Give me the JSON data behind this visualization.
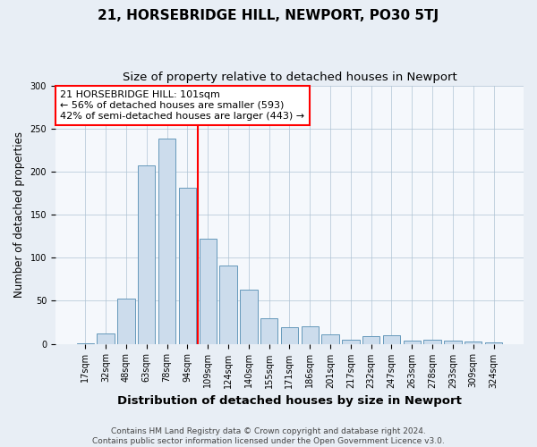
{
  "title": "21, HORSEBRIDGE HILL, NEWPORT, PO30 5TJ",
  "subtitle": "Size of property relative to detached houses in Newport",
  "xlabel": "Distribution of detached houses by size in Newport",
  "ylabel": "Number of detached properties",
  "categories": [
    "17sqm",
    "32sqm",
    "48sqm",
    "63sqm",
    "78sqm",
    "94sqm",
    "109sqm",
    "124sqm",
    "140sqm",
    "155sqm",
    "171sqm",
    "186sqm",
    "201sqm",
    "217sqm",
    "232sqm",
    "247sqm",
    "263sqm",
    "278sqm",
    "293sqm",
    "309sqm",
    "324sqm"
  ],
  "values": [
    1,
    12,
    53,
    207,
    238,
    181,
    122,
    91,
    63,
    30,
    19,
    20,
    11,
    5,
    9,
    10,
    4,
    5,
    4,
    3,
    2
  ],
  "bar_color": "#ccdcec",
  "bar_edge_color": "#6699bb",
  "vline_x_index": 5.5,
  "vline_color": "red",
  "annotation_text": "21 HORSEBRIDGE HILL: 101sqm\n← 56% of detached houses are smaller (593)\n42% of semi-detached houses are larger (443) →",
  "annotation_box_color": "white",
  "annotation_box_edge_color": "red",
  "ylim": [
    0,
    300
  ],
  "yticks": [
    0,
    50,
    100,
    150,
    200,
    250,
    300
  ],
  "footer": "Contains HM Land Registry data © Crown copyright and database right 2024.\nContains public sector information licensed under the Open Government Licence v3.0.",
  "background_color": "#e8eef5",
  "plot_background_color": "#f5f8fc",
  "title_fontsize": 11,
  "subtitle_fontsize": 9.5,
  "xlabel_fontsize": 9.5,
  "ylabel_fontsize": 8.5,
  "tick_fontsize": 7,
  "footer_fontsize": 6.5,
  "annotation_fontsize": 8
}
